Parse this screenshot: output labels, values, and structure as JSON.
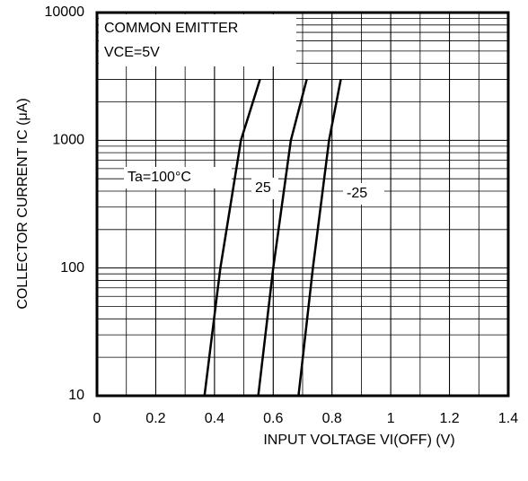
{
  "chart_data": {
    "type": "line",
    "annotation": [
      "COMMON EMITTER",
      "VCE=5V"
    ],
    "x_label": "INPUT VOLTAGE  VI(OFF)   (V)",
    "y_label": "COLLECTOR CURRENT  IC  (μA)",
    "xlim": [
      0,
      1.4
    ],
    "xticks": [
      0,
      0.2,
      0.4,
      0.6,
      0.8,
      1,
      1.2,
      1.4
    ],
    "ylim": [
      10,
      10000
    ],
    "yticks": [
      10,
      100,
      1000,
      10000
    ],
    "log_y": true,
    "grid": true,
    "series": [
      {
        "name": "Ta=100°C",
        "color": "#000000",
        "x": [
          0.366,
          0.42,
          0.49,
          0.555
        ],
        "values": [
          10,
          100,
          1000,
          3000
        ]
      },
      {
        "name": "25",
        "color": "#000000",
        "x": [
          0.549,
          0.6,
          0.66,
          0.714
        ],
        "values": [
          10,
          100,
          1000,
          3000
        ]
      },
      {
        "name": "-25",
        "color": "#000000",
        "x": [
          0.686,
          0.735,
          0.79,
          0.83
        ],
        "values": [
          10,
          100,
          1000,
          3000
        ]
      }
    ]
  }
}
